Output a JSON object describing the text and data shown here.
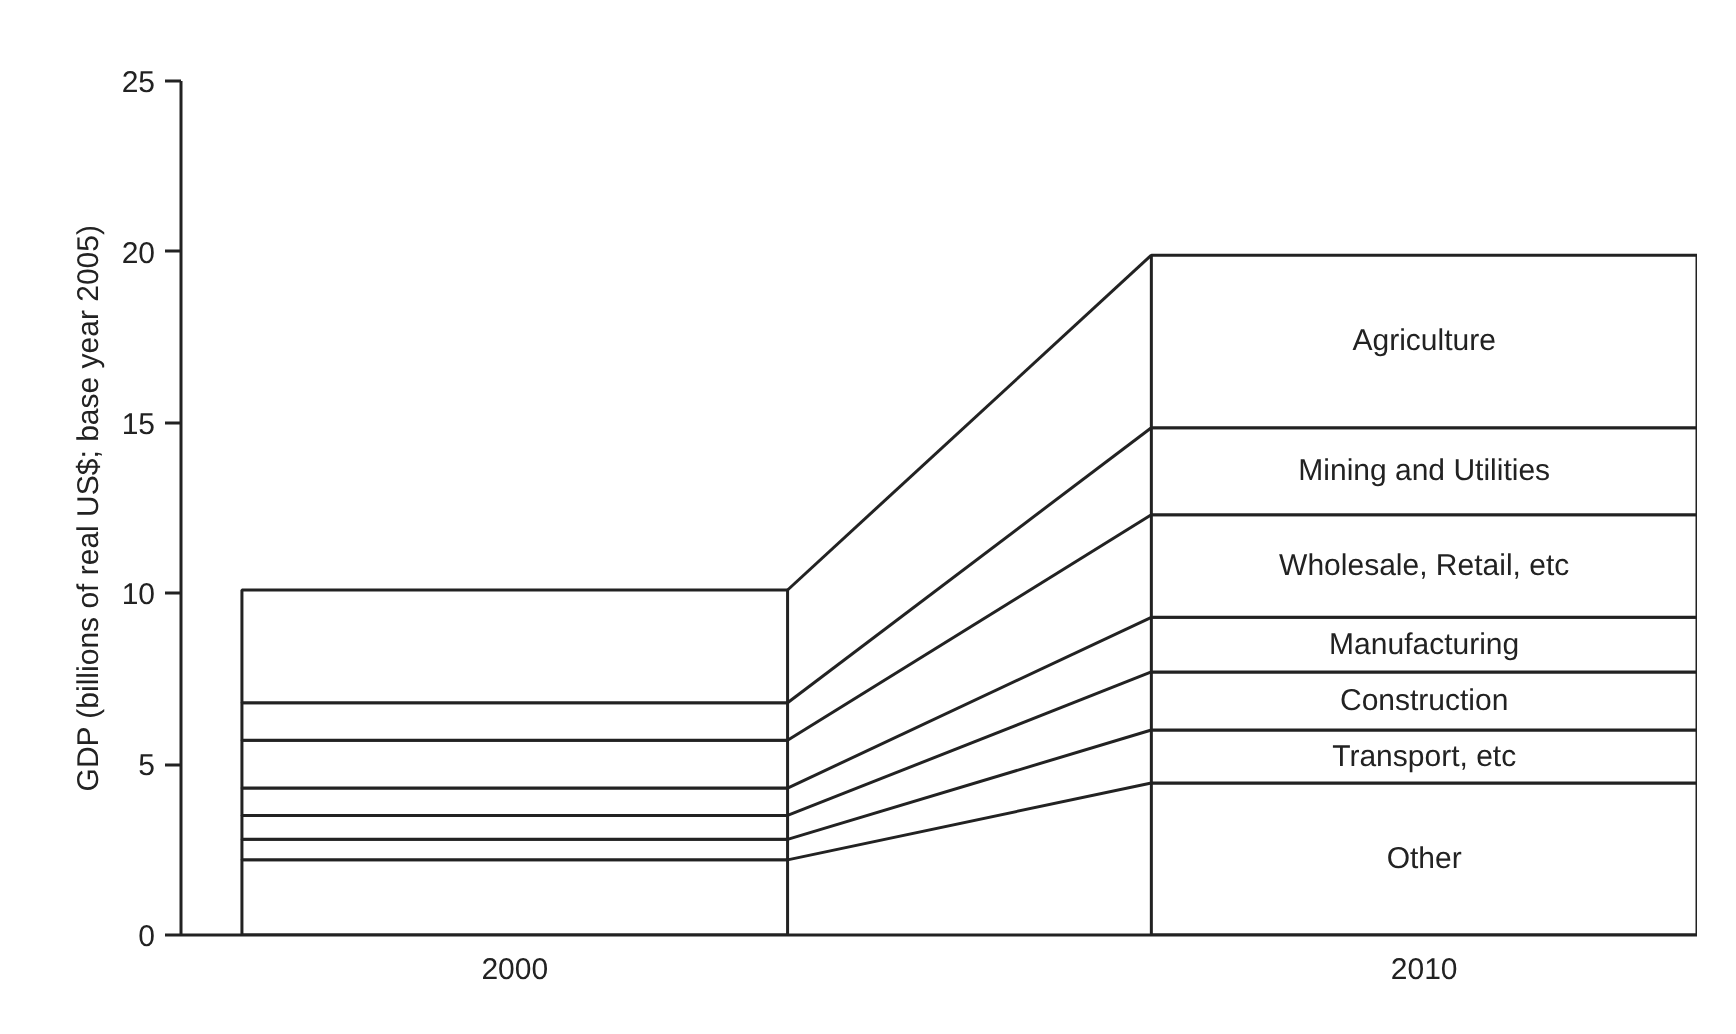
{
  "chart_data": {
    "type": "bar",
    "stacked": true,
    "ylabel": "GDP (billions of real US$; base year 2005)",
    "categories": [
      "2000",
      "2010"
    ],
    "series": [
      {
        "name": "Other",
        "color": "#ffffff",
        "values": [
          2.2,
          4.45
        ]
      },
      {
        "name": "Transport, etc",
        "color": "#ffffff",
        "values": [
          0.6,
          1.55
        ]
      },
      {
        "name": "Construction",
        "color": "#ffffff",
        "values": [
          0.7,
          1.7
        ]
      },
      {
        "name": "Manufacturing",
        "color": "#ffffff",
        "values": [
          0.8,
          1.6
        ]
      },
      {
        "name": "Wholesale, Retail, etc",
        "color": "#ffffff",
        "values": [
          1.4,
          3.0
        ]
      },
      {
        "name": "Mining and Utilities",
        "color": "#ffffff",
        "values": [
          1.1,
          2.55
        ]
      },
      {
        "name": "Agriculture",
        "color": "#ffffff",
        "values": [
          3.3,
          5.05
        ]
      }
    ],
    "ylim": [
      0,
      25
    ],
    "yticks": [
      0,
      5,
      10,
      15,
      20,
      25
    ],
    "grid": false
  }
}
